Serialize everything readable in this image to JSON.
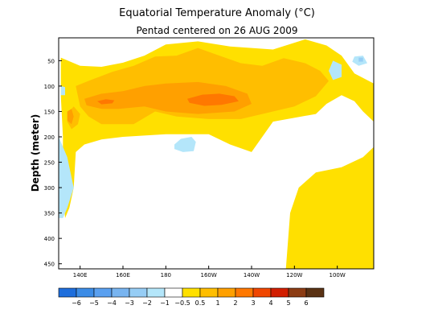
{
  "chart_data": {
    "type": "heatmap",
    "title": "Equatorial Temperature Anomaly (°C)",
    "subtitle": "Pentad centered on 26 AUG 2009",
    "xlabel": "",
    "ylabel": "Depth (meter)",
    "x_ticks": [
      "140E",
      "160E",
      "180",
      "160W",
      "140W",
      "120W",
      "100W"
    ],
    "x_tick_lon": [
      140,
      160,
      180,
      200,
      220,
      240,
      260
    ],
    "xlim_lon": [
      130,
      277
    ],
    "y_ticks": [
      "50",
      "100",
      "150",
      "200",
      "250",
      "300",
      "350",
      "400",
      "450"
    ],
    "ylim": [
      460,
      5
    ],
    "colorbar": {
      "labels": [
        "−6",
        "−5",
        "−4",
        "−3",
        "−2",
        "−1",
        "−0.5",
        "0.5",
        "1",
        "2",
        "3",
        "4",
        "5",
        "6"
      ],
      "colors": [
        "#1e6edc",
        "#3c8ce6",
        "#5aa0f0",
        "#78b4f0",
        "#96cdf5",
        "#b4e6fa",
        "#ffffff",
        "#ffe000",
        "#ffbe00",
        "#ffa000",
        "#ff7800",
        "#f04600",
        "#d21e00",
        "#8c3c14",
        "#5a3214"
      ]
    },
    "regions": [
      {
        "level": "0.5 to 1",
        "color": "#ffe000",
        "points": [
          [
            131,
            44
          ],
          [
            140,
            60
          ],
          [
            150,
            62
          ],
          [
            160,
            54
          ],
          [
            170,
            40
          ],
          [
            180,
            18
          ],
          [
            195,
            12
          ],
          [
            210,
            22
          ],
          [
            230,
            28
          ],
          [
            245,
            8
          ],
          [
            255,
            20
          ],
          [
            262,
            40
          ],
          [
            268,
            75
          ],
          [
            277,
            95
          ],
          [
            277,
            170
          ],
          [
            272,
            150
          ],
          [
            268,
            130
          ],
          [
            262,
            118
          ],
          [
            255,
            135
          ],
          [
            250,
            155
          ],
          [
            230,
            170
          ],
          [
            220,
            230
          ],
          [
            210,
            215
          ],
          [
            200,
            195
          ],
          [
            180,
            195
          ],
          [
            160,
            200
          ],
          [
            150,
            205
          ],
          [
            142,
            215
          ],
          [
            138,
            230
          ],
          [
            137,
            300
          ],
          [
            135,
            340
          ],
          [
            133,
            360
          ],
          [
            132,
            300
          ],
          [
            132,
            200
          ],
          [
            131,
            120
          ]
        ]
      },
      {
        "level": "0.5 to 1",
        "color": "#ffe000",
        "points": [
          [
            236,
            460
          ],
          [
            238,
            350
          ],
          [
            242,
            300
          ],
          [
            250,
            270
          ],
          [
            262,
            260
          ],
          [
            272,
            240
          ],
          [
            277,
            220
          ],
          [
            277,
            460
          ]
        ]
      },
      {
        "level": "1 to 2",
        "color": "#ffbe00",
        "points": [
          [
            138,
            100
          ],
          [
            145,
            88
          ],
          [
            155,
            72
          ],
          [
            165,
            60
          ],
          [
            175,
            42
          ],
          [
            185,
            40
          ],
          [
            195,
            25
          ],
          [
            205,
            40
          ],
          [
            215,
            55
          ],
          [
            225,
            60
          ],
          [
            235,
            45
          ],
          [
            245,
            55
          ],
          [
            252,
            70
          ],
          [
            256,
            90
          ],
          [
            250,
            120
          ],
          [
            240,
            140
          ],
          [
            225,
            155
          ],
          [
            215,
            165
          ],
          [
            200,
            165
          ],
          [
            185,
            160
          ],
          [
            175,
            150
          ],
          [
            165,
            175
          ],
          [
            150,
            175
          ],
          [
            144,
            160
          ],
          [
            140,
            140
          ]
        ]
      },
      {
        "level": "1 to 2",
        "color": "#ffbe00",
        "points": [
          [
            135,
            150
          ],
          [
            137,
            140
          ],
          [
            140,
            155
          ],
          [
            139,
            175
          ],
          [
            136,
            185
          ],
          [
            134,
            170
          ]
        ]
      },
      {
        "level": "2 to 3",
        "color": "#ffa000",
        "points": [
          [
            142,
            125
          ],
          [
            150,
            115
          ],
          [
            160,
            110
          ],
          [
            170,
            100
          ],
          [
            180,
            95
          ],
          [
            195,
            92
          ],
          [
            208,
            100
          ],
          [
            218,
            115
          ],
          [
            220,
            135
          ],
          [
            212,
            150
          ],
          [
            195,
            155
          ],
          [
            180,
            150
          ],
          [
            170,
            140
          ],
          [
            158,
            145
          ],
          [
            150,
            145
          ],
          [
            143,
            138
          ]
        ]
      },
      {
        "level": "2 to 3",
        "color": "#ffa000",
        "points": [
          [
            134,
            150
          ],
          [
            136,
            145
          ],
          [
            137,
            160
          ],
          [
            136,
            175
          ],
          [
            134,
            168
          ]
        ]
      },
      {
        "level": "3 to 4",
        "color": "#ff7800",
        "points": [
          [
            190,
            125
          ],
          [
            197,
            117
          ],
          [
            205,
            115
          ],
          [
            212,
            120
          ],
          [
            214,
            130
          ],
          [
            206,
            137
          ],
          [
            198,
            139
          ],
          [
            191,
            133
          ]
        ]
      },
      {
        "level": "3 to 4",
        "color": "#ff7800",
        "points": [
          [
            148,
            130
          ],
          [
            152,
            126
          ],
          [
            156,
            128
          ],
          [
            155,
            134
          ],
          [
            150,
            136
          ]
        ]
      },
      {
        "level": "-1 to -0.5",
        "color": "#b4e6fa",
        "points": [
          [
            184,
            215
          ],
          [
            187,
            204
          ],
          [
            192,
            200
          ],
          [
            194,
            210
          ],
          [
            193,
            228
          ],
          [
            188,
            230
          ],
          [
            184,
            224
          ]
        ]
      },
      {
        "level": "-1 to -0.5",
        "color": "#b4e6fa",
        "points": [
          [
            130,
            200
          ],
          [
            134,
            240
          ],
          [
            137,
            300
          ],
          [
            134,
            340
          ],
          [
            132,
            360
          ],
          [
            130,
            360
          ]
        ]
      },
      {
        "level": "-1 to -0.5",
        "color": "#b4e6fa",
        "points": [
          [
            131,
            100
          ],
          [
            133,
            102
          ],
          [
            133,
            118
          ],
          [
            131,
            118
          ]
        ]
      },
      {
        "level": "-1 to -0.5",
        "color": "#b4e6fa",
        "points": [
          [
            258,
            50
          ],
          [
            262,
            58
          ],
          [
            262,
            82
          ],
          [
            258,
            88
          ],
          [
            256,
            70
          ]
        ]
      },
      {
        "level": "-1 to -0.5",
        "color": "#b4e6fa",
        "points": [
          [
            268,
            42
          ],
          [
            272,
            40
          ],
          [
            274,
            55
          ],
          [
            270,
            60
          ],
          [
            267,
            52
          ]
        ]
      },
      {
        "level": "-2 to -1",
        "color": "#96cdf5",
        "points": [
          [
            270,
            44
          ],
          [
            272,
            44
          ],
          [
            272,
            52
          ],
          [
            270,
            52
          ]
        ]
      }
    ]
  }
}
